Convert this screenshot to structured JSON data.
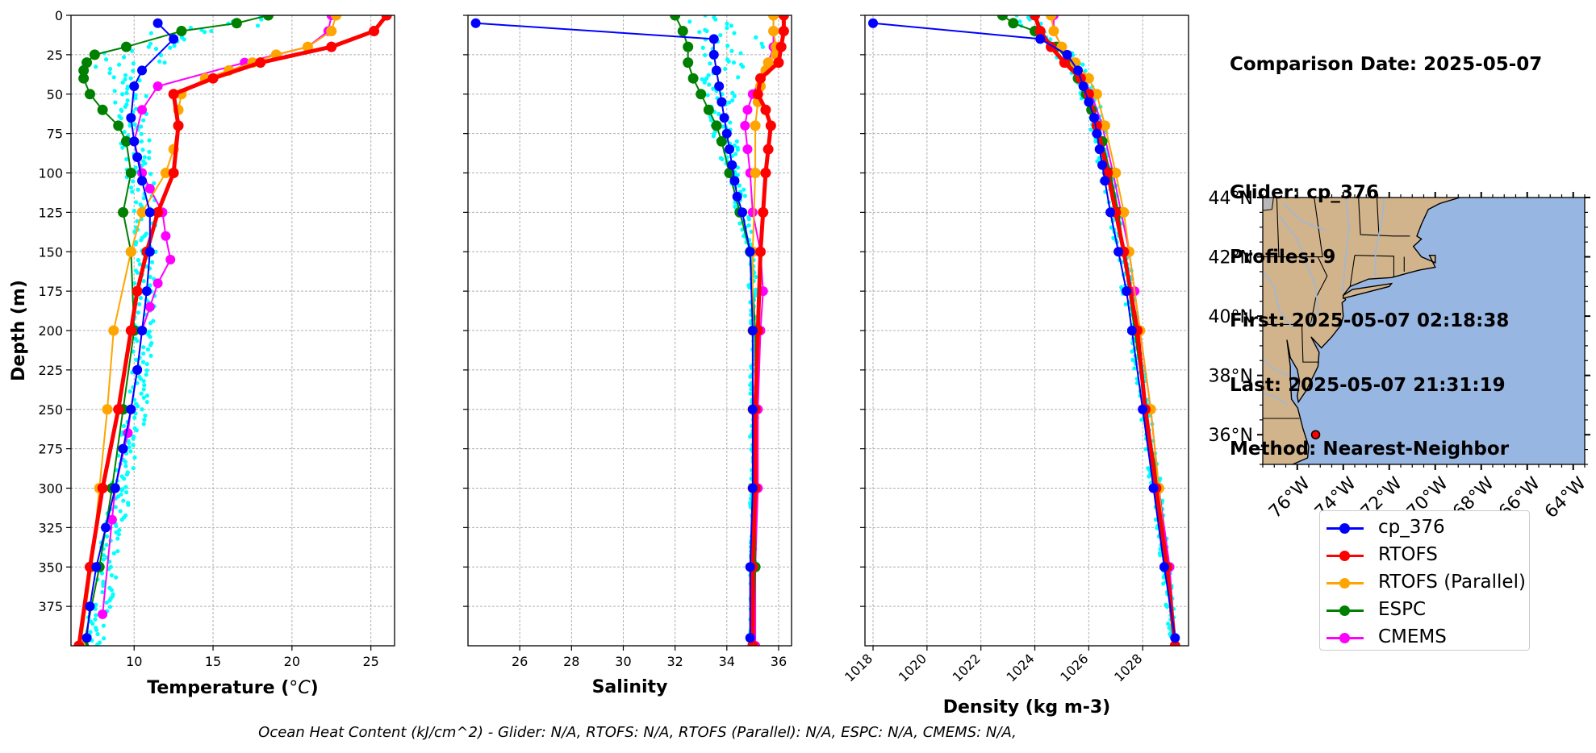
{
  "info": {
    "comparison": "Comparison Date: 2025-05-07",
    "glider": "Glider: cp_376",
    "profiles": "Profiles: 9",
    "first": "First: 2025-05-07 02:18:38",
    "last": "Last: 2025-05-07 21:31:19",
    "method": "Method: Nearest-Neighbor"
  },
  "footnote": "Ocean Heat Content (kJ/cm^2) - Glider: N/A,  RTOFS: N/A,  RTOFS (Parallel): N/A,  ESPC: N/A,  CMEMS: N/A,",
  "legend": [
    {
      "label": "cp_376",
      "color": "#0000ff"
    },
    {
      "label": "RTOFS",
      "color": "#ff0000"
    },
    {
      "label": "RTOFS (Parallel)",
      "color": "#ffa500"
    },
    {
      "label": "ESPC",
      "color": "#008000"
    },
    {
      "label": "CMEMS",
      "color": "#ff00ff"
    }
  ],
  "colors": {
    "glider": "#0000ff",
    "rtofs": "#ff0000",
    "rtofs_parallel": "#ffa500",
    "espc": "#008000",
    "cmems": "#ff00ff",
    "glider_profiles": "#00ffff",
    "land": "#d2b48c",
    "ocean": "#98b6e2"
  },
  "map": {
    "lat_ticks": [
      "44°N",
      "42°N",
      "40°N",
      "38°N",
      "36°N"
    ],
    "lon_ticks": [
      "76°W",
      "74°W",
      "72°W",
      "70°W",
      "68°W",
      "66°W",
      "64°W"
    ],
    "extent": {
      "lon": [
        -77.5,
        -63.5
      ],
      "lat": [
        35,
        44
      ]
    },
    "glider_position": {
      "lon": -75.2,
      "lat": 36.0
    }
  },
  "chart_data": [
    {
      "type": "line",
      "xlabel": "Temperature (°C)",
      "ylabel": "Depth (m)",
      "xlim": [
        6,
        26.5
      ],
      "ylim": [
        400,
        0
      ],
      "xticks": [
        10,
        15,
        20,
        25
      ],
      "yticks": [
        0,
        25,
        50,
        75,
        100,
        125,
        150,
        175,
        200,
        225,
        250,
        275,
        300,
        325,
        350,
        375
      ],
      "grid": true,
      "series": [
        {
          "name": "cp_376",
          "depth": [
            5,
            15,
            35,
            45,
            65,
            80,
            90,
            105,
            125,
            150,
            175,
            200,
            225,
            250,
            275,
            300,
            325,
            350,
            375,
            395
          ],
          "values": [
            11.5,
            12.5,
            10.5,
            10.0,
            9.8,
            10.0,
            10.2,
            10.5,
            11.0,
            11.0,
            10.8,
            10.5,
            10.2,
            9.8,
            9.3,
            8.8,
            8.2,
            7.6,
            7.2,
            7.0
          ]
        },
        {
          "name": "RTOFS",
          "depth": [
            0,
            10,
            20,
            30,
            40,
            50,
            70,
            100,
            125,
            150,
            175,
            200,
            250,
            300,
            350,
            400
          ],
          "values": [
            26.0,
            25.2,
            22.5,
            18.0,
            15.0,
            12.5,
            12.8,
            12.5,
            11.5,
            10.8,
            10.2,
            9.8,
            9.0,
            8.0,
            7.2,
            6.5
          ]
        },
        {
          "name": "RTOFS (Parallel)",
          "depth": [
            0,
            10,
            20,
            25,
            30,
            35,
            40,
            50,
            60,
            70,
            85,
            100,
            125,
            150,
            200,
            250,
            300,
            350,
            400
          ],
          "values": [
            22.8,
            22.5,
            21.0,
            19.0,
            17.5,
            16.0,
            14.5,
            13.0,
            12.8,
            12.8,
            12.5,
            12.0,
            10.5,
            9.8,
            8.7,
            8.3,
            7.8,
            7.3,
            6.6
          ]
        },
        {
          "name": "ESPC",
          "depth": [
            0,
            5,
            10,
            20,
            25,
            30,
            35,
            40,
            50,
            60,
            70,
            80,
            100,
            125,
            150,
            200,
            250,
            300,
            350,
            400
          ],
          "values": [
            18.5,
            16.5,
            13.0,
            9.5,
            7.5,
            7.0,
            6.8,
            6.8,
            7.2,
            8.0,
            9.0,
            9.5,
            9.8,
            9.3,
            9.8,
            10.0,
            9.3,
            8.6,
            7.8,
            6.8
          ]
        },
        {
          "name": "CMEMS",
          "depth": [
            0,
            10,
            20,
            30,
            45,
            60,
            80,
            100,
            110,
            125,
            140,
            155,
            170,
            185,
            200,
            225,
            250,
            265,
            300,
            320,
            380
          ],
          "values": [
            22.5,
            22.3,
            21.0,
            17.0,
            11.5,
            10.5,
            10.0,
            10.5,
            11.0,
            11.8,
            12.0,
            12.3,
            11.5,
            11.0,
            10.5,
            10.2,
            9.8,
            9.6,
            8.8,
            8.6,
            8.0
          ]
        }
      ],
      "glider_profiles": {
        "name": "glider profiles",
        "depth": [
          0,
          10,
          20,
          30,
          40,
          50,
          60,
          70,
          80,
          90,
          100,
          120,
          150,
          200,
          250,
          300,
          350,
          400
        ],
        "min": [
          18.0,
          11.0,
          7.5,
          7.5,
          8.0,
          8.5,
          8.8,
          9.0,
          9.0,
          9.2,
          9.5,
          10.0,
          10.0,
          10.0,
          9.5,
          8.5,
          7.5,
          6.8
        ],
        "max": [
          20.0,
          15.0,
          12.0,
          12.0,
          11.0,
          11.0,
          11.0,
          11.0,
          11.0,
          11.0,
          11.2,
          11.5,
          11.5,
          11.2,
          10.8,
          9.8,
          9.0,
          8.0
        ]
      }
    },
    {
      "type": "line",
      "xlabel": "Salinity",
      "ylabel": "",
      "xlim": [
        24,
        36.5
      ],
      "ylim": [
        400,
        0
      ],
      "xticks": [
        26,
        28,
        30,
        32,
        34,
        36
      ],
      "grid": true,
      "series": [
        {
          "name": "cp_376",
          "depth": [
            5,
            15,
            25,
            35,
            45,
            55,
            65,
            75,
            85,
            95,
            105,
            115,
            125,
            150,
            200,
            250,
            300,
            350,
            395
          ],
          "values": [
            24.3,
            33.5,
            33.5,
            33.6,
            33.7,
            33.8,
            33.9,
            34.0,
            34.1,
            34.2,
            34.3,
            34.4,
            34.6,
            34.9,
            35.0,
            35.0,
            35.0,
            34.9,
            34.9
          ]
        },
        {
          "name": "RTOFS",
          "depth": [
            0,
            10,
            20,
            30,
            40,
            50,
            60,
            70,
            85,
            100,
            125,
            150,
            200,
            250,
            300,
            350,
            400
          ],
          "values": [
            36.2,
            36.2,
            36.1,
            36.0,
            35.3,
            35.2,
            35.5,
            35.7,
            35.6,
            35.5,
            35.4,
            35.3,
            35.2,
            35.1,
            35.1,
            35.0,
            35.0
          ]
        },
        {
          "name": "RTOFS (Parallel)",
          "depth": [
            0,
            10,
            20,
            25,
            30,
            35,
            45,
            55,
            70,
            100,
            150,
            200,
            250,
            300,
            350,
            400
          ],
          "values": [
            35.8,
            35.8,
            35.9,
            35.9,
            35.6,
            35.5,
            35.3,
            35.2,
            35.1,
            35.1,
            35.0,
            35.0,
            35.0,
            35.0,
            35.0,
            35.0
          ]
        },
        {
          "name": "ESPC",
          "depth": [
            0,
            10,
            20,
            30,
            40,
            50,
            60,
            70,
            80,
            100,
            125,
            150,
            200,
            250,
            300,
            350,
            400
          ],
          "values": [
            32.0,
            32.3,
            32.5,
            32.5,
            32.7,
            33.0,
            33.3,
            33.6,
            33.8,
            34.1,
            34.5,
            34.9,
            35.1,
            35.1,
            35.1,
            35.1,
            35.0
          ]
        },
        {
          "name": "CMEMS",
          "depth": [
            0,
            10,
            20,
            30,
            40,
            50,
            60,
            70,
            85,
            100,
            125,
            150,
            175,
            200,
            250,
            300,
            350,
            400
          ],
          "values": [
            35.8,
            35.8,
            35.8,
            35.6,
            35.3,
            35.0,
            34.8,
            34.7,
            34.8,
            34.9,
            35.0,
            35.3,
            35.4,
            35.3,
            35.2,
            35.2,
            35.1,
            35.1
          ]
        }
      ],
      "glider_profiles": {
        "name": "glider profiles",
        "depth": [
          0,
          10,
          20,
          30,
          40,
          50,
          60,
          70,
          80,
          90,
          100,
          120,
          150,
          200,
          250,
          300,
          350,
          400
        ],
        "min": [
          32.3,
          32.5,
          32.6,
          32.7,
          32.8,
          33.0,
          33.2,
          33.4,
          33.6,
          33.8,
          34.0,
          34.3,
          34.8,
          34.9,
          34.9,
          34.9,
          34.9,
          34.9
        ],
        "max": [
          34.0,
          35.0,
          35.5,
          34.8,
          34.5,
          34.3,
          34.3,
          34.3,
          34.4,
          34.5,
          34.6,
          34.8,
          35.1,
          35.2,
          35.2,
          35.1,
          35.1,
          35.0
        ]
      }
    },
    {
      "type": "line",
      "xlabel": "Density (kg m-3)",
      "ylabel": "",
      "xlim": [
        1017.7,
        1029.7
      ],
      "ylim": [
        400,
        0
      ],
      "xticks": [
        1018,
        1020,
        1022,
        1024,
        1026,
        1028
      ],
      "grid": true,
      "series": [
        {
          "name": "cp_376",
          "depth": [
            5,
            15,
            25,
            35,
            45,
            55,
            65,
            75,
            85,
            95,
            105,
            125,
            150,
            175,
            200,
            250,
            300,
            350,
            395
          ],
          "values": [
            1018.0,
            1024.2,
            1025.2,
            1025.6,
            1025.8,
            1026.0,
            1026.2,
            1026.3,
            1026.4,
            1026.5,
            1026.6,
            1026.8,
            1027.1,
            1027.4,
            1027.6,
            1028.0,
            1028.4,
            1028.8,
            1029.2
          ]
        },
        {
          "name": "RTOFS",
          "depth": [
            0,
            10,
            20,
            30,
            40,
            50,
            70,
            100,
            125,
            150,
            200,
            250,
            300,
            350,
            400
          ],
          "values": [
            1024.0,
            1024.2,
            1024.6,
            1025.1,
            1025.7,
            1026.0,
            1026.3,
            1026.7,
            1027.0,
            1027.3,
            1027.8,
            1028.1,
            1028.5,
            1028.9,
            1029.2
          ]
        },
        {
          "name": "RTOFS (Parallel)",
          "depth": [
            0,
            10,
            20,
            30,
            40,
            50,
            70,
            100,
            125,
            150,
            200,
            250,
            300,
            350,
            400
          ],
          "values": [
            1024.6,
            1024.7,
            1025.0,
            1025.5,
            1026.0,
            1026.3,
            1026.6,
            1027.0,
            1027.3,
            1027.5,
            1027.9,
            1028.3,
            1028.6,
            1028.9,
            1029.2
          ]
        },
        {
          "name": "ESPC",
          "depth": [
            0,
            5,
            10,
            20,
            30,
            40,
            50,
            60,
            70,
            80,
            100,
            125,
            150,
            200,
            250,
            300,
            350,
            400
          ],
          "values": [
            1022.8,
            1023.2,
            1024.0,
            1024.8,
            1025.3,
            1025.6,
            1025.9,
            1026.1,
            1026.3,
            1026.5,
            1026.8,
            1027.1,
            1027.3,
            1027.7,
            1028.1,
            1028.6,
            1028.9,
            1029.2
          ]
        },
        {
          "name": "CMEMS",
          "depth": [
            0,
            10,
            20,
            30,
            40,
            50,
            70,
            100,
            125,
            150,
            175,
            200,
            250,
            300,
            350,
            400
          ],
          "values": [
            1024.7,
            1024.7,
            1025.0,
            1025.4,
            1025.8,
            1026.1,
            1026.5,
            1026.9,
            1027.2,
            1027.5,
            1027.7,
            1027.9,
            1028.3,
            1028.6,
            1029.0,
            1029.2
          ]
        }
      ],
      "glider_profiles": {
        "name": "glider profiles",
        "depth": [
          0,
          10,
          20,
          30,
          40,
          50,
          60,
          70,
          80,
          90,
          100,
          120,
          150,
          200,
          250,
          300,
          350,
          400
        ],
        "min": [
          1023.2,
          1023.8,
          1024.5,
          1025.1,
          1025.4,
          1025.7,
          1025.9,
          1026.0,
          1026.2,
          1026.3,
          1026.4,
          1026.7,
          1027.0,
          1027.5,
          1027.9,
          1028.3,
          1028.7,
          1029.0
        ],
        "max": [
          1024.2,
          1024.5,
          1025.2,
          1025.8,
          1026.1,
          1026.3,
          1026.5,
          1026.6,
          1026.7,
          1026.8,
          1026.9,
          1027.2,
          1027.5,
          1027.9,
          1028.3,
          1028.7,
          1029.0,
          1029.3
        ]
      }
    }
  ]
}
